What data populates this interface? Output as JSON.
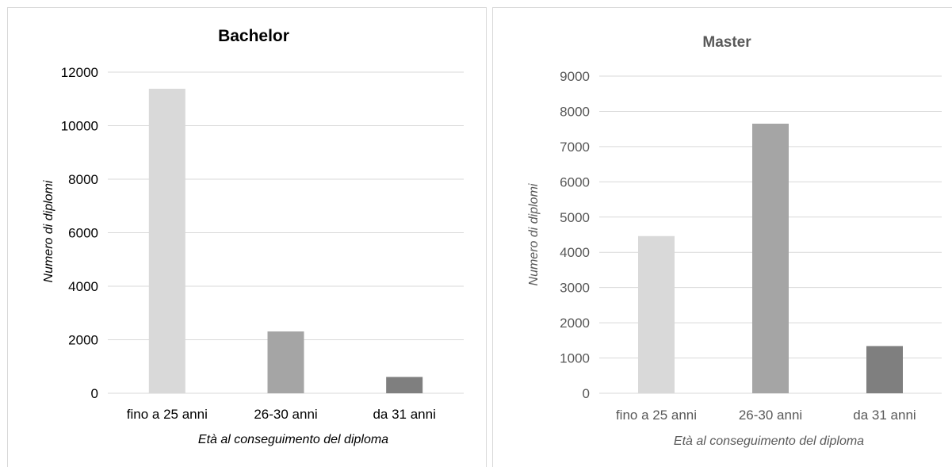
{
  "chart_data": [
    {
      "type": "bar",
      "title": "Bachelor",
      "categories": [
        "fino a 25 anni",
        "26-30 anni",
        "da 31 anni"
      ],
      "values": [
        11380,
        2310,
        610
      ],
      "colors": [
        "#d9d9d9",
        "#a5a5a5",
        "#7f7f7f"
      ],
      "xlabel": "Età al conseguimento del diploma",
      "ylabel": "Numero di diplomi",
      "ylim": [
        0,
        12000
      ],
      "yticks": [
        "0",
        "2000",
        "4000",
        "6000",
        "8000",
        "10000",
        "12000"
      ],
      "grid": true,
      "legend": "none"
    },
    {
      "type": "bar",
      "title": "Master",
      "categories": [
        "fino a 25 anni",
        "26-30 anni",
        "da 31 anni"
      ],
      "values": [
        4460,
        7650,
        1340
      ],
      "colors": [
        "#d9d9d9",
        "#a5a5a5",
        "#7f7f7f"
      ],
      "xlabel": "Età al conseguimento del diploma",
      "ylabel": "Numero di diplomi",
      "ylim": [
        0,
        9000
      ],
      "yticks": [
        "0",
        "1000",
        "2000",
        "3000",
        "4000",
        "5000",
        "6000",
        "7000",
        "8000",
        "9000"
      ],
      "grid": true,
      "legend": "none"
    }
  ],
  "colors": {
    "grid": "#d9d9d9",
    "text": "#000000",
    "text_muted": "#595959",
    "frame": "#d9d9d9"
  }
}
